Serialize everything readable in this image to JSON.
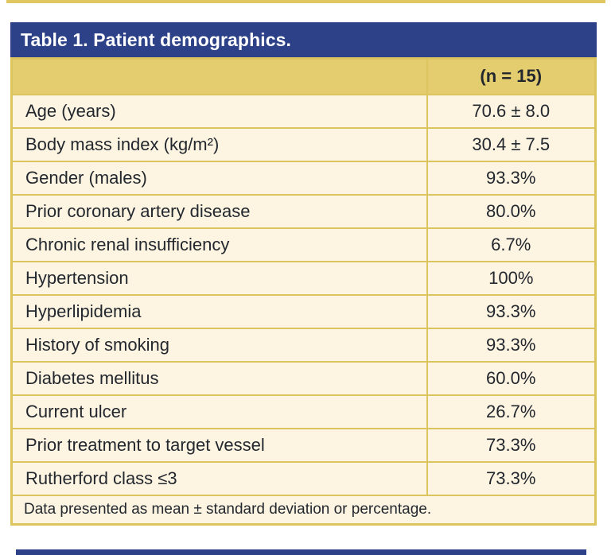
{
  "figure": {
    "title": "Table 1. Patient demographics.",
    "column_header": "(n = 15)",
    "rows": [
      {
        "label": "Age (years)",
        "value": "70.6 ± 8.0"
      },
      {
        "label": "Body mass index (kg/m²)",
        "value": "30.4 ± 7.5"
      },
      {
        "label": "Gender (males)",
        "value": "93.3%"
      },
      {
        "label": "Prior coronary artery disease",
        "value": "80.0%"
      },
      {
        "label": "Chronic renal insufficiency",
        "value": "6.7%"
      },
      {
        "label": "Hypertension",
        "value": "100%"
      },
      {
        "label": "Hyperlipidemia",
        "value": "93.3%"
      },
      {
        "label": "History of smoking",
        "value": "93.3%"
      },
      {
        "label": "Diabetes mellitus",
        "value": "60.0%"
      },
      {
        "label": "Current ulcer",
        "value": "26.7%"
      },
      {
        "label": "Prior treatment to target vessel",
        "value": "73.3%"
      },
      {
        "label": "Rutherford class ≤3",
        "value": "73.3%"
      }
    ],
    "footnote": "Data presented as mean ± standard deviation or percentage.",
    "colors": {
      "title_bar_blue": "#2c4187",
      "header_gold": "#e4cd6e",
      "border_gold": "#dcc45f",
      "row_cream": "#fdf5e2",
      "text_dark": "#23272e"
    }
  }
}
